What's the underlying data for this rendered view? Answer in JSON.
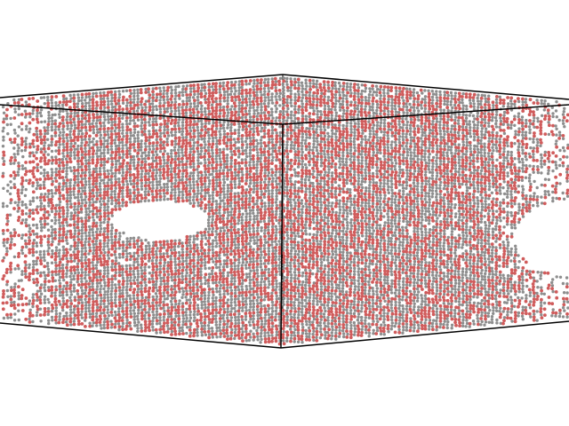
{
  "scene": {
    "background_color": "#ffffff",
    "box_edge_color": "#000000",
    "atom_colors": {
      "oxygen": "#d05c5c",
      "carbon": "#8e8e8e"
    }
  }
}
